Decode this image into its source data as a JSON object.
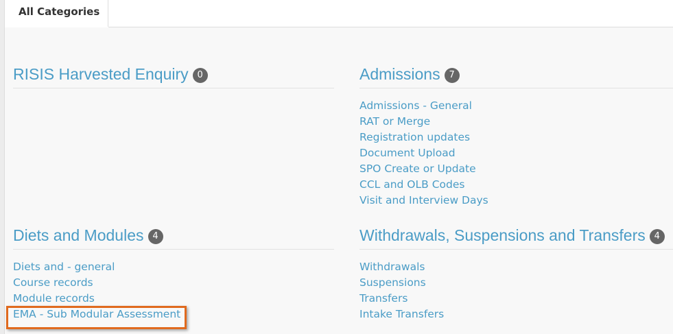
{
  "tabs": [
    {
      "label": "All Categories",
      "active": true
    }
  ],
  "categories": [
    {
      "title": "RISIS Harvested Enquiry",
      "count": "0",
      "links": []
    },
    {
      "title": "Admissions",
      "count": "7",
      "links": [
        "Admissions - General",
        "RAT or Merge",
        "Registration updates",
        "Document Upload",
        "SPO Create or Update",
        "CCL and OLB Codes",
        "Visit and Interview Days"
      ]
    },
    {
      "title": "Diets and Modules",
      "count": "4",
      "links": [
        "Diets and - general",
        "Course records",
        "Module records",
        "EMA - Sub Modular Assessment"
      ]
    },
    {
      "title": "Withdrawals, Suspensions and Transfers",
      "count": "4",
      "links": [
        "Withdrawals",
        "Suspensions",
        "Transfers",
        "Intake Transfers"
      ]
    }
  ],
  "colors": {
    "link": "#4a9cc6",
    "badge": "#666666",
    "highlight": "#e06a1e"
  }
}
